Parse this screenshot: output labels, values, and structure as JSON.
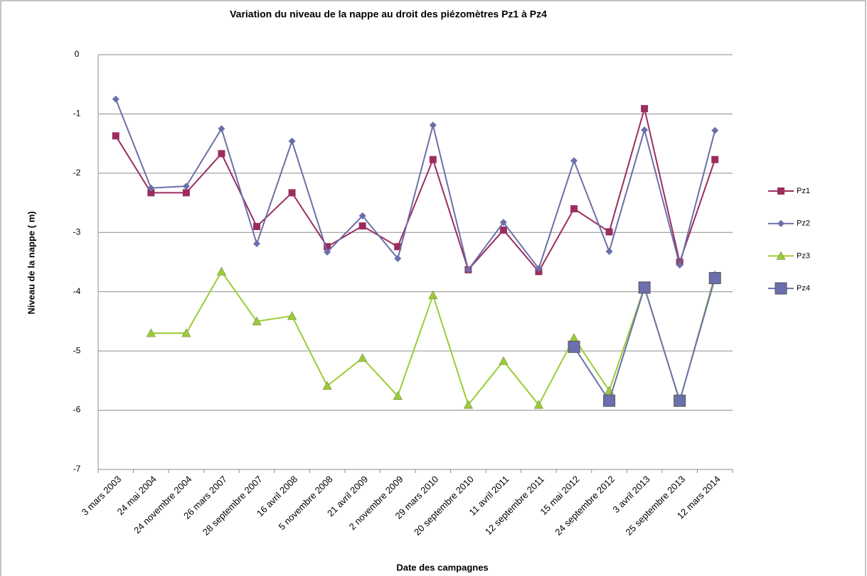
{
  "chart_data": {
    "type": "line",
    "title": "Variation du niveau de la nappe au droit des piézomètres Pz1 à Pz4",
    "x_label": "Date des campagnes",
    "y_label": "Niveau  de la nappe ( m)",
    "categories": [
      "3 mars 2003",
      "24 mai 2004",
      "24 novembre 2004",
      "26 mars 2007",
      "28 septembre 2007",
      "16 avril 2008",
      "5 novembre 2008",
      "21 avril 2009",
      "2 novembre 2009",
      "29 mars 2010",
      "20 septembre 2010",
      "11 avril 2011",
      "12 septembre 2011",
      "15 mai 2012",
      "24 septembre 2012",
      "3 avril 2013",
      "25 septembre 2013",
      "12 mars 2014"
    ],
    "series": [
      {
        "name": "Pz1",
        "color": "#9b2d5e",
        "marker": "square",
        "values": [
          -1.37,
          -2.33,
          -2.33,
          -1.67,
          -2.9,
          -2.33,
          -3.24,
          -2.89,
          -3.24,
          -1.77,
          -3.63,
          -2.96,
          -3.66,
          -2.6,
          -2.99,
          -0.91,
          -3.5,
          -1.77
        ]
      },
      {
        "name": "Pz2",
        "color": "#6b6fa8",
        "marker": "diamond",
        "values": [
          -0.75,
          -2.25,
          -2.22,
          -1.25,
          -3.19,
          -1.46,
          -3.33,
          -2.72,
          -3.44,
          -1.19,
          -3.63,
          -2.83,
          -3.61,
          -1.79,
          -3.32,
          -1.27,
          -3.55,
          -1.28
        ]
      },
      {
        "name": "Pz3",
        "color": "#9acd32",
        "marker": "triangle",
        "values": [
          null,
          -4.7,
          -4.7,
          -3.66,
          -4.5,
          -4.41,
          -5.59,
          -5.12,
          -5.76,
          -4.06,
          -5.91,
          -5.17,
          -5.91,
          -4.78,
          -5.67,
          -3.92,
          -5.85,
          -3.72
        ]
      },
      {
        "name": "Pz4",
        "color": "#6b6fad",
        "marker": "bigsquare",
        "values": [
          null,
          null,
          null,
          null,
          null,
          null,
          null,
          null,
          null,
          null,
          null,
          null,
          null,
          -4.93,
          -5.84,
          -3.93,
          -5.84,
          -3.77
        ]
      }
    ],
    "ylim": [
      -7,
      0
    ],
    "yticks": [
      -7,
      -6,
      -5,
      -4,
      -3,
      -2,
      -1,
      0
    ],
    "grid": true,
    "legend": "right"
  }
}
